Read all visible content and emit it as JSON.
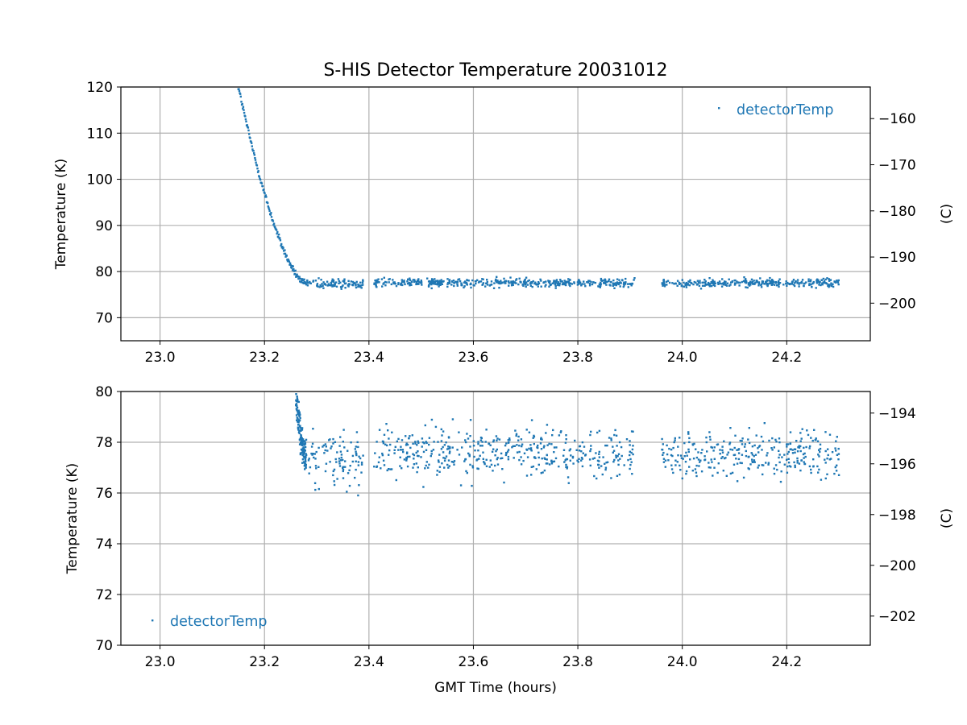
{
  "chart_data": [
    {
      "type": "scatter",
      "title": "S-HIS Detector Temperature 20031012",
      "xlabel": "",
      "ylabel": "Temperature (K)",
      "y2label": "(C)",
      "xlim": [
        22.925,
        24.36
      ],
      "ylim": [
        65,
        120
      ],
      "y2lim": [
        -208.15,
        -153.15
      ],
      "xticks": [
        "23.0",
        "23.2",
        "23.4",
        "23.6",
        "23.8",
        "24.0",
        "24.2"
      ],
      "yticks": [
        "70",
        "80",
        "90",
        "100",
        "110",
        "120"
      ],
      "y2ticks": [
        "−160",
        "−170",
        "−180",
        "−190",
        "−200"
      ],
      "grid": true,
      "legend": "upper right",
      "series": [
        {
          "name": "detectorTemp",
          "color": "#1f77b4",
          "marker": "point",
          "segments": [
            {
              "x_start": 23.15,
              "x_end": 23.28,
              "start_value": 120,
              "end_value": 77.3,
              "shape": "cooldown"
            },
            {
              "x_start": 23.28,
              "x_end": 23.39,
              "mean": 77.4,
              "spread": 1.6
            },
            {
              "x_start": 23.41,
              "x_end": 23.91,
              "mean": 77.6,
              "spread": 1.4
            },
            {
              "x_start": 23.96,
              "x_end": 24.3,
              "mean": 77.5,
              "spread": 1.4
            }
          ]
        }
      ]
    },
    {
      "type": "scatter",
      "title": "",
      "xlabel": "GMT Time (hours)",
      "ylabel": "Temperature (K)",
      "y2label": "(C)",
      "xlim": [
        22.925,
        24.36
      ],
      "ylim": [
        70,
        80
      ],
      "y2lim": [
        -203.15,
        -193.15
      ],
      "xticks": [
        "23.0",
        "23.2",
        "23.4",
        "23.6",
        "23.8",
        "24.0",
        "24.2"
      ],
      "yticks": [
        "70",
        "72",
        "74",
        "76",
        "78",
        "80"
      ],
      "y2ticks": [
        "−194",
        "−196",
        "−198",
        "−200",
        "−202"
      ],
      "grid": true,
      "legend": "lower left",
      "series": [
        {
          "name": "detectorTemp",
          "color": "#1f77b4",
          "marker": "point",
          "segments": [
            {
              "x_start": 23.26,
              "x_end": 23.28,
              "start_value": 80,
              "end_value": 77.3,
              "shape": "cooldown"
            },
            {
              "x_start": 23.28,
              "x_end": 23.39,
              "mean": 77.4,
              "spread": 1.6
            },
            {
              "x_start": 23.41,
              "x_end": 23.91,
              "mean": 77.6,
              "spread": 1.4
            },
            {
              "x_start": 23.96,
              "x_end": 24.3,
              "mean": 77.5,
              "spread": 1.4
            }
          ]
        }
      ]
    }
  ]
}
